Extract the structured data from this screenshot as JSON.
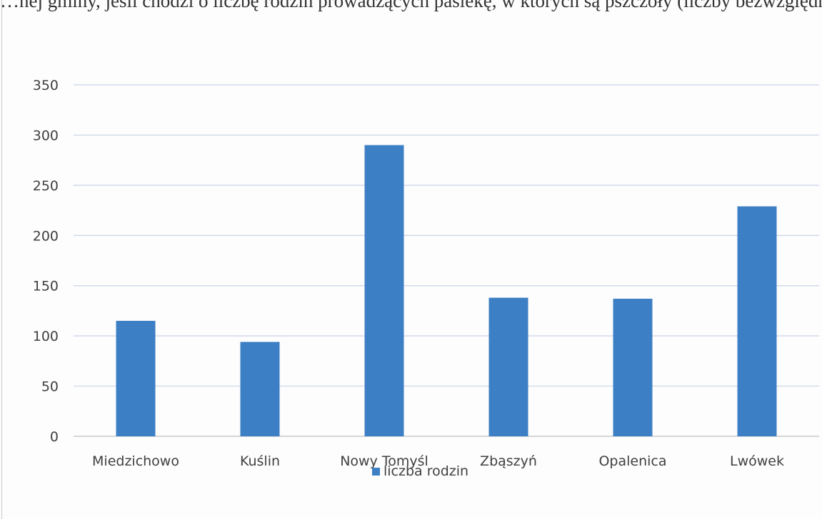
{
  "chart_data": {
    "type": "bar",
    "title_fragment": "…nej gminy, jeśli chodzi o liczbę rodzin prowadzących pasiekę, w których są pszczoły (liczby bezwzględne)",
    "categories": [
      "Miedzichowo",
      "Kuślin",
      "Nowy Tomyśl",
      "Zbąszyń",
      "Opalenica",
      "Lwówek"
    ],
    "series": [
      {
        "name": "liczba rodzin",
        "color": "#3d7fc4",
        "values": [
          115,
          94,
          290,
          138,
          137,
          229
        ]
      }
    ],
    "y_ticks": [
      "0",
      "50",
      "100",
      "150",
      "200",
      "250",
      "300",
      "350"
    ],
    "ylim": [
      0,
      350
    ],
    "grid": true,
    "legend_position": "bottom-center",
    "gridline_color": "#c9d2e6",
    "axis_color": "#c0c0c0",
    "label_color": "#404040"
  }
}
